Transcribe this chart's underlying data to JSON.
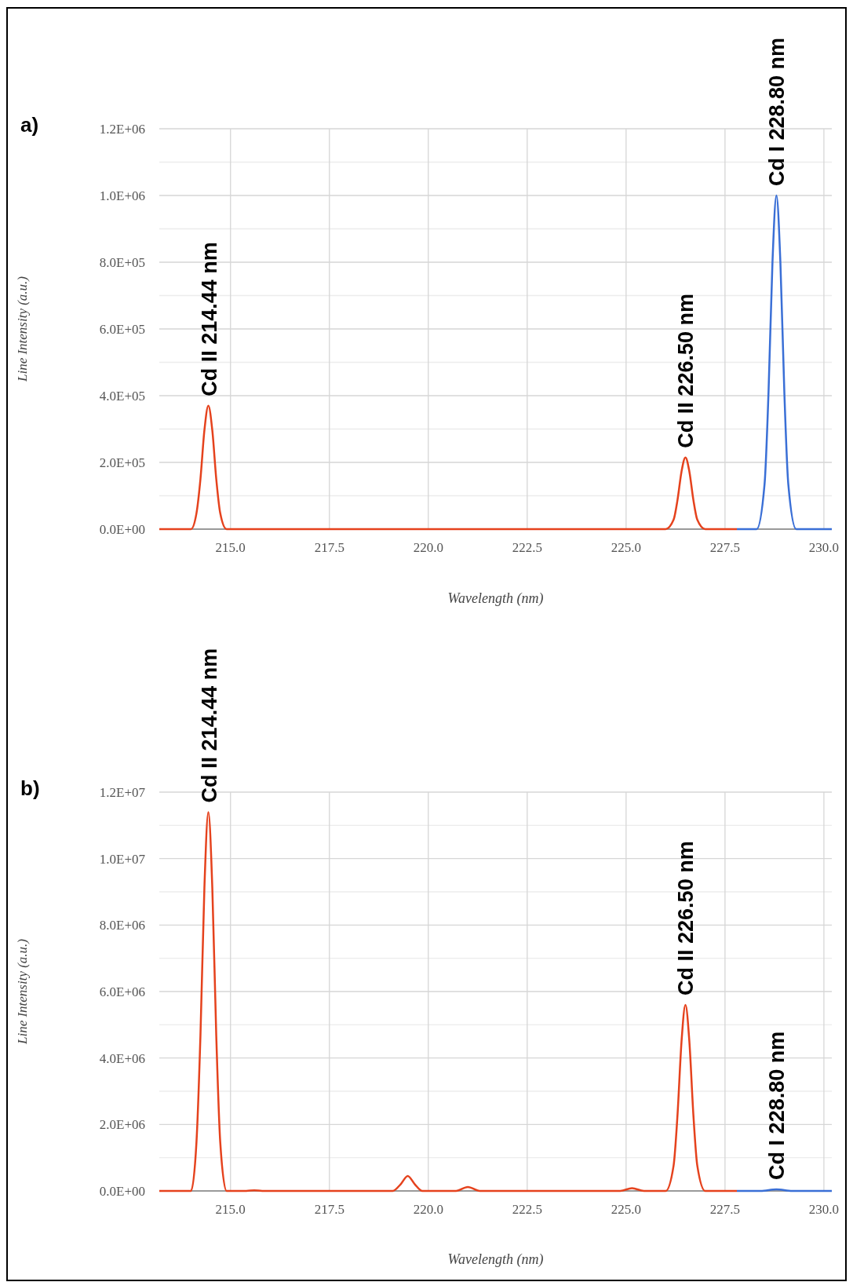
{
  "chart_data": [
    {
      "type": "line",
      "title": "a)",
      "xlabel": "Wavelength (nm)",
      "ylabel": "Line Intensity (a.u.)",
      "xlim": [
        213.2,
        230.2
      ],
      "xticks": [
        {
          "value": 215,
          "label": "215.0"
        },
        {
          "value": 217.5,
          "label": "217.5"
        },
        {
          "value": 220,
          "label": "220.0"
        },
        {
          "value": 222.5,
          "label": "222.5"
        },
        {
          "value": 225,
          "label": "225.0"
        },
        {
          "value": 227.5,
          "label": "227.5"
        },
        {
          "value": 230,
          "label": "230.0"
        }
      ],
      "ylim": [
        0,
        1200000
      ],
      "yticks": [
        {
          "value": 0,
          "label": "0.0E+00"
        },
        {
          "value": 100000,
          "label": null
        },
        {
          "value": 200000,
          "label": "2.0E+05"
        },
        {
          "value": 300000,
          "label": null
        },
        {
          "value": 400000,
          "label": "4.0E+05"
        },
        {
          "value": 500000,
          "label": null
        },
        {
          "value": 600000,
          "label": "6.0E+05"
        },
        {
          "value": 700000,
          "label": null
        },
        {
          "value": 800000,
          "label": "8.0E+05"
        },
        {
          "value": 900000,
          "label": null
        },
        {
          "value": 1000000,
          "label": "1.0E+06"
        },
        {
          "value": 1100000,
          "label": null
        },
        {
          "value": 1200000,
          "label": "1.2E+06"
        }
      ],
      "grid": true,
      "marker": "none",
      "line_style": "solid",
      "series": [
        {
          "color": "#e5421d",
          "x": [
            213.2,
            214.0,
            214.14,
            214.24,
            214.34,
            214.44,
            214.54,
            214.64,
            214.74,
            214.9,
            226.0,
            226.2,
            226.3,
            226.4,
            226.5,
            226.6,
            226.7,
            226.8,
            227.0,
            227.8
          ],
          "values": [
            0,
            0,
            48000,
            150000,
            296000,
            370000,
            296000,
            150000,
            48000,
            0,
            0,
            28000,
            88000,
            172000,
            215000,
            172000,
            88000,
            28000,
            0,
            0
          ]
        },
        {
          "color": "#3a6fd6",
          "x": [
            227.8,
            228.3,
            228.5,
            228.6,
            228.7,
            228.8,
            228.9,
            229.0,
            229.1,
            229.3,
            230.2
          ],
          "values": [
            0,
            0,
            135000,
            410000,
            800000,
            1000000,
            800000,
            410000,
            135000,
            0,
            0
          ]
        }
      ],
      "annotations": [
        {
          "text": "Cd II 214.44 nm",
          "x": 214.44,
          "y": 370000
        },
        {
          "text": "Cd II 226.50 nm",
          "x": 226.5,
          "y": 215000
        },
        {
          "text": "Cd I 228.80 nm",
          "x": 228.8,
          "y": 1000000
        }
      ]
    },
    {
      "type": "line",
      "title": "b)",
      "xlabel": "Wavelength (nm)",
      "ylabel": "Line Intensity (a.u.)",
      "xlim": [
        213.2,
        230.2
      ],
      "xticks": [
        {
          "value": 215,
          "label": "215.0"
        },
        {
          "value": 217.5,
          "label": "217.5"
        },
        {
          "value": 220,
          "label": "220.0"
        },
        {
          "value": 222.5,
          "label": "222.5"
        },
        {
          "value": 225,
          "label": "225.0"
        },
        {
          "value": 227.5,
          "label": "227.5"
        },
        {
          "value": 230,
          "label": "230.0"
        }
      ],
      "ylim": [
        0,
        12000000
      ],
      "yticks": [
        {
          "value": 0,
          "label": "0.0E+00"
        },
        {
          "value": 1000000,
          "label": null
        },
        {
          "value": 2000000,
          "label": "2.0E+06"
        },
        {
          "value": 3000000,
          "label": null
        },
        {
          "value": 4000000,
          "label": "4.0E+06"
        },
        {
          "value": 5000000,
          "label": null
        },
        {
          "value": 6000000,
          "label": "6.0E+06"
        },
        {
          "value": 7000000,
          "label": null
        },
        {
          "value": 8000000,
          "label": "8.0E+06"
        },
        {
          "value": 9000000,
          "label": null
        },
        {
          "value": 10000000,
          "label": "1.0E+07"
        },
        {
          "value": 11000000,
          "label": null
        },
        {
          "value": 12000000,
          "label": "1.2E+07"
        }
      ],
      "grid": true,
      "marker": "none",
      "line_style": "solid",
      "series": [
        {
          "color": "#e5421d",
          "x": [
            213.2,
            214.0,
            214.14,
            214.24,
            214.34,
            214.44,
            214.54,
            214.64,
            214.74,
            214.9,
            215.4,
            215.6,
            215.8,
            219.1,
            219.3,
            219.48,
            219.66,
            219.85,
            220.7,
            221.0,
            221.3,
            224.85,
            225.15,
            225.45,
            226.0,
            226.2,
            226.3,
            226.4,
            226.5,
            226.6,
            226.7,
            226.8,
            227.0,
            227.8
          ],
          "values": [
            0,
            0,
            1480000,
            4670000,
            9120000,
            11400000,
            9120000,
            4670000,
            1480000,
            0,
            0,
            20000,
            0,
            0,
            200000,
            450000,
            200000,
            0,
            0,
            120000,
            0,
            0,
            80000,
            0,
            0,
            760000,
            2300000,
            4480000,
            5600000,
            4480000,
            2300000,
            760000,
            0,
            0
          ]
        },
        {
          "color": "#3a6fd6",
          "x": [
            227.8,
            228.4,
            228.8,
            229.2,
            230.2
          ],
          "values": [
            0,
            0,
            50000,
            0,
            0
          ]
        }
      ],
      "annotations": [
        {
          "text": "Cd II 214.44 nm",
          "x": 214.44,
          "y": 11400000
        },
        {
          "text": "Cd II 226.50 nm",
          "x": 226.5,
          "y": 5600000
        },
        {
          "text": "Cd I 228.80 nm",
          "x": 228.8,
          "y": 50000
        }
      ]
    }
  ]
}
